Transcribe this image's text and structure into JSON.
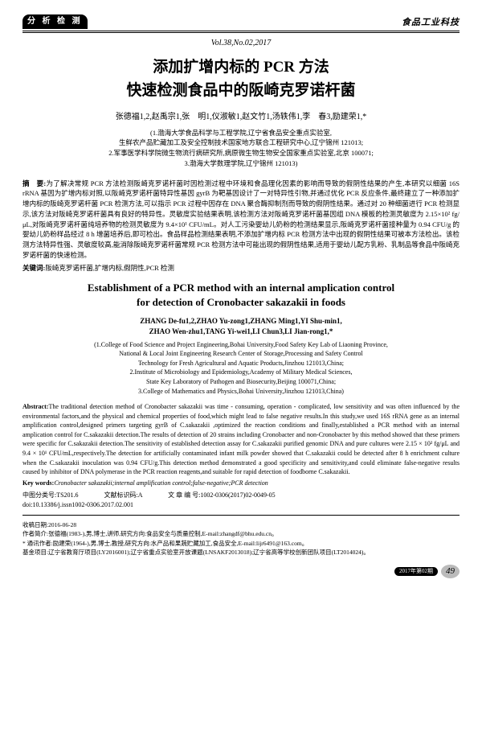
{
  "header": {
    "tab": "分 析 检 测",
    "journal": "食品工业科技",
    "vol": "Vol.38,No.02,2017"
  },
  "title_cn": "添加扩增内标的 PCR 方法\n快速检测食品中的阪崎克罗诺杆菌",
  "authors_cn": "张德福1,2,赵禹宗1,张　明1,仪淑敏1,赵文竹1,汤轶伟1,李　春3,励建荣1,*",
  "affil_cn": "(1.渤海大学食品科学与工程学院,辽宁省食品安全重点实验室,\n生鲜农产品贮藏加工及安全控制技术国家地方联合工程研究中心,辽宁锦州 121013;\n2.军事医学科学院微生物流行病研究所,病原微生物生物安全国家重点实验室,北京 100071;\n3.渤海大学数理学院,辽宁锦州 121013)",
  "abs_cn_label": "摘　要:",
  "abs_cn": "为了解决常规 PCR 方法检测阪崎克罗诺杆菌时因检测过程中环境和食品理化因素的影响而导致的假阴性结果的产生,本研究以细菌 16S rRNA 基因为扩增内标对照,以阪崎克罗诺杆菌特异性基因 gyrB 为靶基因设计了一对特异性引物,并通过优化 PCR 反应条件,最终建立了一种添加扩增内标的阪崎克罗诺杆菌 PCR 检测方法,可以指示 PCR 过程中因存在 DNA 聚合酶抑制剂而导致的假阴性结果。通过对 20 种细菌进行 PCR 检测显示,该方法对阪崎克罗诺杆菌具有良好的特异性。灵敏度实验结果表明,该检测方法对阪崎克罗诺杆菌基因组 DNA 模板的检测灵敏度为 2.15×10² fg/μL,对阪崎克罗诺杆菌纯培养物的检测灵敏度为 9.4×10¹ CFU/mL。对人工污染婴幼儿奶粉的检测结果显示,阪崎克罗诺杆菌接种量为 0.94 CFU/g 的婴幼儿奶粉样品经过 8 h 增菌培养后,即可检出。食品样品检测结果表明,不添加扩增内标 PCR 检测方法中出现的假阴性结果可被本方法检出。该检测方法特异性强、灵敏度较高,能消除阪崎克罗诺杆菌常规 PCR 检测方法中可能出现的假阴性结果,适用于婴幼儿配方乳粉、乳制品等食品中阪崎克罗诺杆菌的快速检测。",
  "kw_cn_label": "关键词:",
  "kw_cn": "阪崎克罗诺杆菌,扩增内标,假阴性,PCR 检测",
  "title_en": "Establishment of a PCR method with an internal amplication control\nfor detection of Cronobacter sakazakii in foods",
  "authors_en": "ZHANG De-fu1,2,ZHAO Yu-zong1,ZHANG Ming1,YI Shu-min1,\nZHAO Wen-zhu1,TANG Yi-wei1,LI Chun3,LI Jian-rong1,*",
  "affil_en": "(1.College of Food Science and Project Engineering,Bohai University,Food Safety Key Lab of Liaoning Province,\nNational & Local Joint Engineering Research Center of Storage,Processing and Safety Control\nTechnology for Fresh Agricultural and Aquatic Products,Jinzhou 121013,China;\n2.Institute of Microbiology and Epidemiology,Academy of Military Medical Sciences,\nState Key Laboratory of Pathogen and Biosecurity,Beijing 100071,China;\n3.College of Mathematics and Physics,Bohai University,Jinzhou 121013,China)",
  "abs_en_label": "Abstract:",
  "abs_en": "The traditional detection method of Cronobacter sakazakii was time - consuming, operation - complicated, low sensitivity and was often influenced by the environmental factors,and the physical and chemical properties of food,which might lead to false negative results.In this study,we used 16S rRNA gene as an internal amplification control,designed primers targeting gyrB of C.sakazakii ,optimized the reaction conditions and finally,established a PCR method with an internal amplication control for C.sakazakii detection.The results of detection of 20 strains including Cronobacter and non-Cronobacter by this method showed that these primers were specific for C.sakazakii detection.The sensitivity of established detection assay for C.sakazakii purified genomic DNA and pure cultures were 2.15 × 10² fg/μL and 9.4 × 10¹ CFU/mL,respectively.The detection for artificially contaminated infant milk powder showed that C.sakazakii could be detected after 8 h enrichment culture when the C.sakazakii inoculation was 0.94 CFU/g.This detection method demonstrated a good specificity and sensitivity,and could eliminate false-negative results caused by inhibitor of DNA polymerase in the PCR reaction reagents,and suitable for rapid detection of foodborne C.sakazakii.",
  "kw_en_label": "Key words:",
  "kw_en": "Cronobacter sakazakii;internal amplification control;false-negative;PCR detection",
  "meta": {
    "clc": "中图分类号:TS201.6　　　　文献标识码:A　　　　文 章 编 号:1002-0306(2017)02-0049-05",
    "doi": "doi:10.13386/j.issn1002-0306.2017.02.001"
  },
  "footer": {
    "recv": "收稿日期:2016-06-28",
    "author": "作者简介:张德福(1983-),男,博士,讲师,研究方向:食品安全与质量控制,E-mail:zhangdf@bhu.edu.cn。",
    "corr": "* 通讯作者:励建荣(1964-),男,博士,教授,研究方向:水产品和果蔬贮藏加工,食品安全,E-mail:lijr6491@163.com。",
    "fund": "基金项目:辽宁省教育厅项目(LY2016001);辽宁省重点实验室开放课题(LNSAKF2013018);辽宁省高等学校创新团队项目(LT2014024)。"
  },
  "pagefoot": {
    "badge": "2017年第02期",
    "num": "49"
  }
}
